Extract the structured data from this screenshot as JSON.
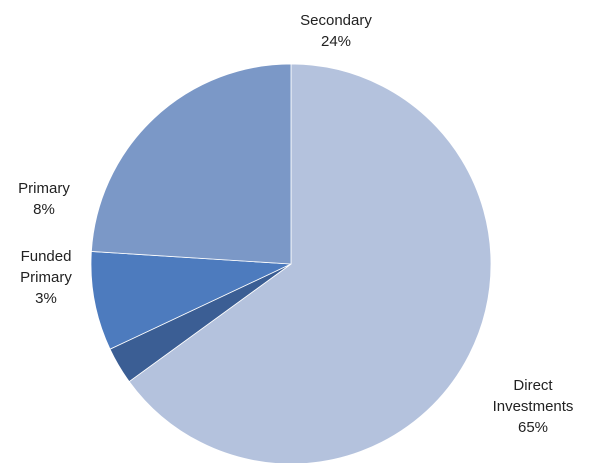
{
  "chart_data": {
    "type": "pie",
    "title": "",
    "start_angle_deg": -90,
    "direction": "clockwise",
    "slices": [
      {
        "name": "Direct Investments",
        "value": 65,
        "label_lines": [
          "Direct",
          "Investments",
          "65%"
        ],
        "color": "#b4c2dd"
      },
      {
        "name": "Funded Primary",
        "value": 3,
        "label_lines": [
          "Funded",
          "Primary",
          "3%"
        ],
        "color": "#3b5e94"
      },
      {
        "name": "Primary",
        "value": 8,
        "label_lines": [
          "Primary",
          "8%"
        ],
        "color": "#4d7bbe"
      },
      {
        "name": "Secondary",
        "value": 24,
        "label_lines": [
          "Secondary",
          "24%"
        ],
        "color": "#7b98c7"
      }
    ]
  }
}
